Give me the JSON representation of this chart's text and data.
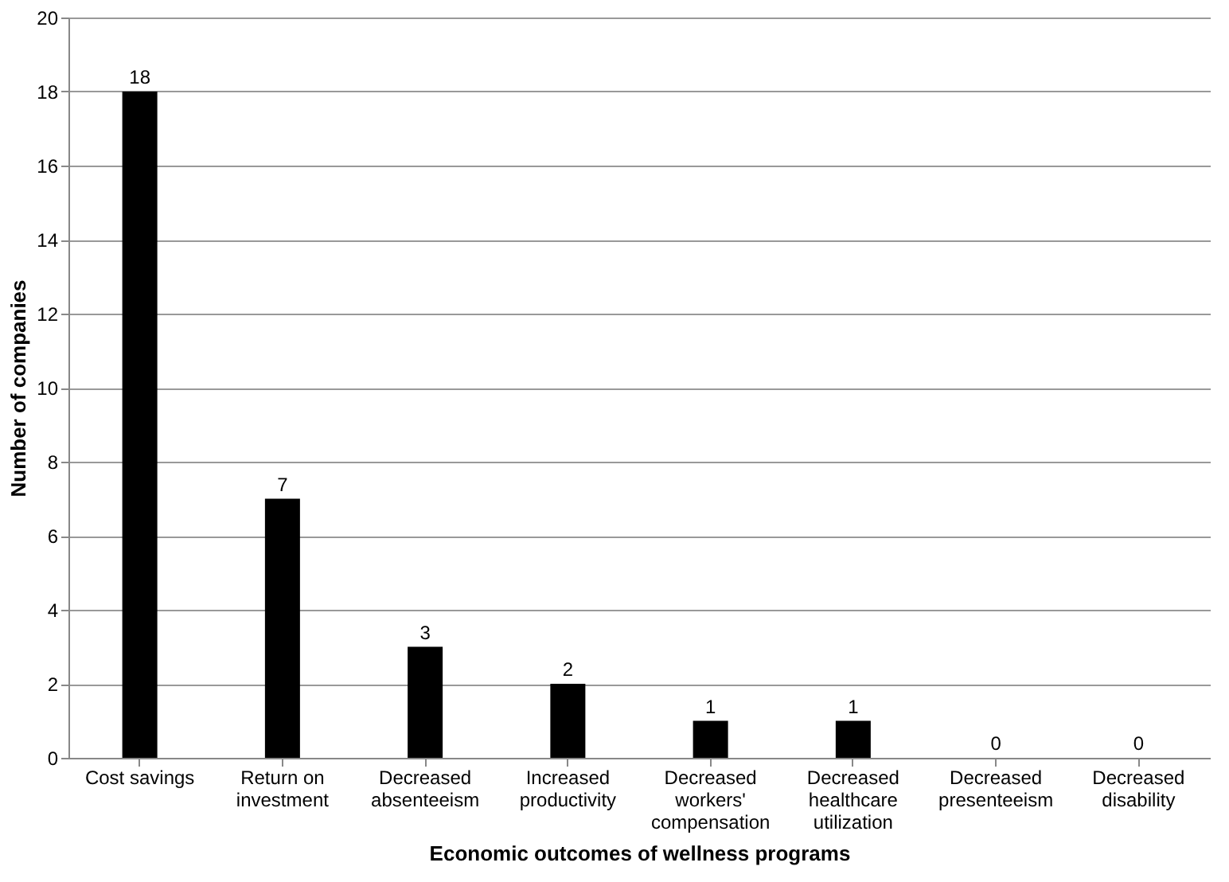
{
  "chart_data": {
    "type": "bar",
    "xlabel": "Economic outcomes of wellness programs",
    "ylabel": "Number of companies",
    "categories": [
      "Cost savings",
      "Return on investment",
      "Decreased absenteeism",
      "Increased productivity",
      "Decreased workers' compensation",
      "Decreased healthcare utilization",
      "Decreased presenteeism",
      "Decreased disability"
    ],
    "values": [
      18,
      7,
      3,
      2,
      1,
      1,
      0,
      0
    ],
    "color": "#000000",
    "ylim": [
      0,
      20
    ],
    "yticks": [
      0,
      2,
      4,
      6,
      8,
      10,
      12,
      14,
      16,
      18,
      20
    ],
    "grid": "y",
    "data_labels": true
  }
}
